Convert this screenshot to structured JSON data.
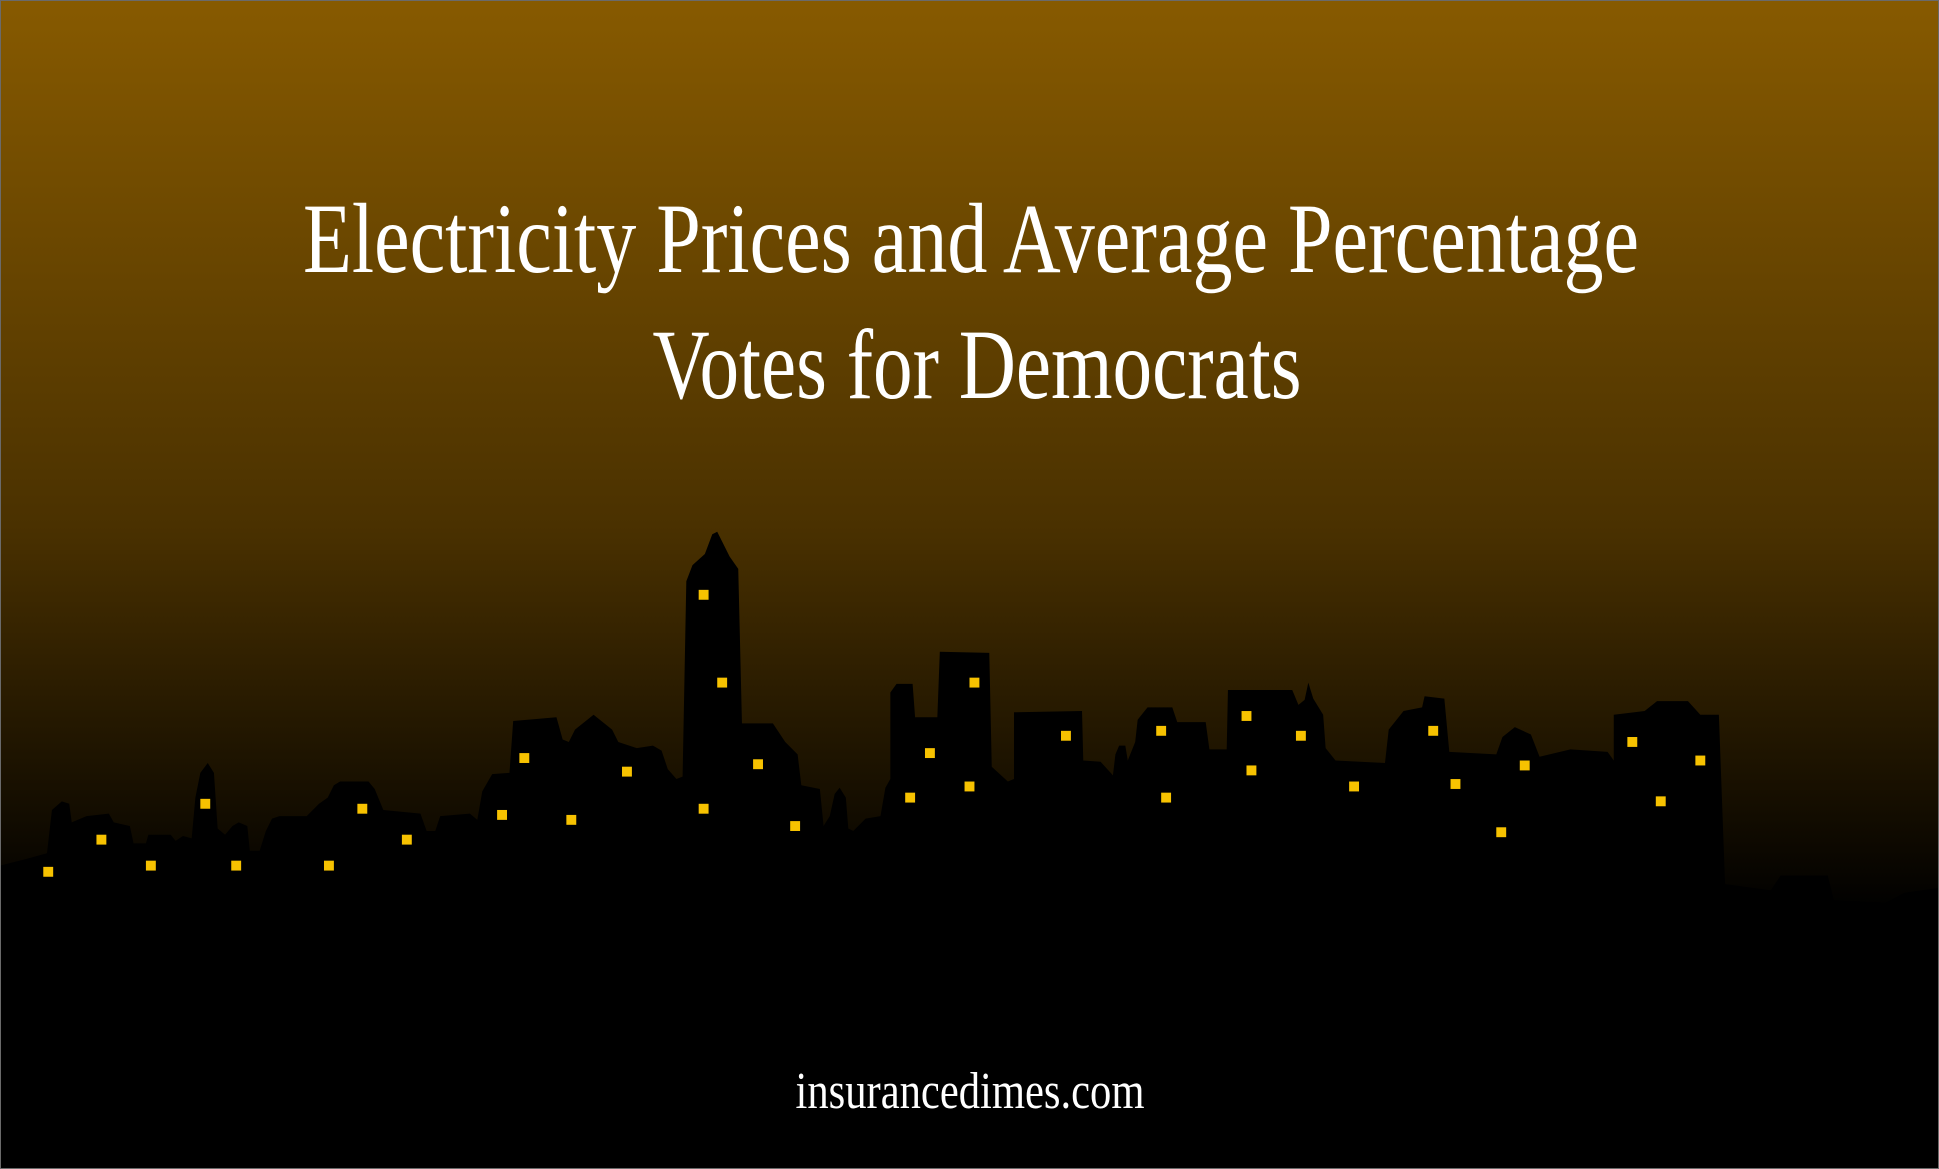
{
  "title_lines": [
    "Electricity Prices and Average Percentage",
    "Votes for Democrats"
  ],
  "site": "insurancedimes.com"
}
